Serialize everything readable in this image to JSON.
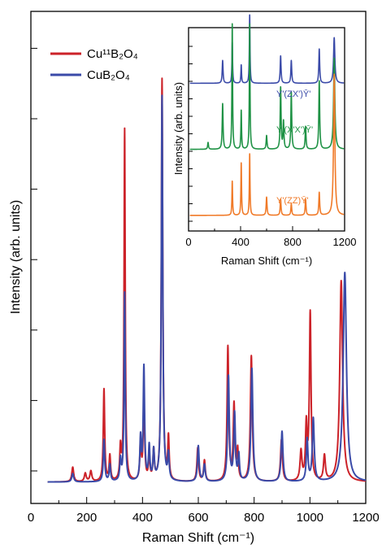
{
  "chart_data": [
    {
      "type": "line",
      "xlabel": "Raman Shift (cm⁻¹)",
      "ylabel": "Intensity (arb. units)",
      "xlim": [
        0,
        1200
      ],
      "xticks": [
        "0",
        "200",
        "400",
        "600",
        "800",
        "1000",
        "1200"
      ],
      "legend_position": "top-left",
      "baseline": 0.02,
      "series": [
        {
          "name": "Cu¹¹B₂O₄",
          "color": "#cc2229",
          "peaks": [
            [
              150,
              0.035,
              4
            ],
            [
              195,
              0.02,
              4
            ],
            [
              215,
              0.025,
              4
            ],
            [
              262,
              0.22,
              3
            ],
            [
              283,
              0.06,
              3
            ],
            [
              321,
              0.075,
              3
            ],
            [
              336,
              0.84,
              2.5
            ],
            [
              393,
              0.09,
              3
            ],
            [
              405,
              0.2,
              3
            ],
            [
              424,
              0.06,
              3
            ],
            [
              440,
              0.07,
              3
            ],
            [
              470,
              0.96,
              3
            ],
            [
              493,
              0.1,
              3
            ],
            [
              598,
              0.08,
              3.5
            ],
            [
              622,
              0.05,
              3.5
            ],
            [
              706,
              0.32,
              3.5
            ],
            [
              728,
              0.18,
              3.5
            ],
            [
              741,
              0.07,
              3
            ],
            [
              790,
              0.3,
              4
            ],
            [
              898,
              0.1,
              4
            ],
            [
              968,
              0.07,
              4
            ],
            [
              987,
              0.13,
              3.5
            ],
            [
              1001,
              0.4,
              3.5
            ],
            [
              1052,
              0.06,
              4
            ],
            [
              1112,
              0.48,
              6
            ]
          ]
        },
        {
          "name": "CuB₂O₄",
          "color": "#3a4aa8",
          "peaks": [
            [
              150,
              0.02,
              4
            ],
            [
              262,
              0.1,
              3
            ],
            [
              283,
              0.04,
              3
            ],
            [
              321,
              0.05,
              3
            ],
            [
              336,
              0.45,
              2.5
            ],
            [
              393,
              0.1,
              3
            ],
            [
              405,
              0.27,
              3
            ],
            [
              424,
              0.08,
              3
            ],
            [
              440,
              0.07,
              3
            ],
            [
              470,
              0.92,
              3
            ],
            [
              493,
              0.06,
              3
            ],
            [
              600,
              0.085,
              3.5
            ],
            [
              622,
              0.04,
              3.5
            ],
            [
              708,
              0.25,
              3.5
            ],
            [
              730,
              0.16,
              3.5
            ],
            [
              745,
              0.06,
              3
            ],
            [
              792,
              0.27,
              4
            ],
            [
              900,
              0.12,
              4
            ],
            [
              990,
              0.1,
              3.5
            ],
            [
              1012,
              0.15,
              4
            ],
            [
              1125,
              0.5,
              7
            ]
          ]
        }
      ]
    },
    {
      "type": "line",
      "xlabel": "Raman Shift (cm⁻¹)",
      "ylabel": "Intensity (arb. units)",
      "xlim": [
        0,
        1200
      ],
      "xticks": [
        "0",
        "400",
        "800",
        "1200"
      ],
      "series": [
        {
          "name": "Y'(ZX')Ȳ'",
          "color": "#3a4aa8",
          "offset": 0.62,
          "peaks": [
            [
              262,
              0.1,
              4
            ],
            [
              336,
              0.18,
              3
            ],
            [
              405,
              0.08,
              3
            ],
            [
              470,
              0.3,
              3
            ],
            [
              708,
              0.12,
              4
            ],
            [
              790,
              0.1,
              4
            ],
            [
              1005,
              0.15,
              4
            ],
            [
              1120,
              0.2,
              6
            ]
          ]
        },
        {
          "name": "Y'(X'X')Ȳ'",
          "color": "#1f9245",
          "offset": 0.33,
          "peaks": [
            [
              150,
              0.03,
              4
            ],
            [
              262,
              0.2,
              4
            ],
            [
              336,
              0.55,
              3
            ],
            [
              405,
              0.17,
              3
            ],
            [
              470,
              0.55,
              3
            ],
            [
              600,
              0.06,
              4
            ],
            [
              708,
              0.27,
              4
            ],
            [
              730,
              0.12,
              4
            ],
            [
              790,
              0.25,
              4
            ],
            [
              900,
              0.1,
              4
            ],
            [
              1005,
              0.3,
              4
            ],
            [
              1120,
              0.4,
              6
            ]
          ]
        },
        {
          "name": "Y'(ZZ)Ȳ'",
          "color": "#f07a28",
          "offset": 0.04,
          "peaks": [
            [
              336,
              0.15,
              3
            ],
            [
              405,
              0.23,
              3
            ],
            [
              470,
              0.27,
              3
            ],
            [
              600,
              0.08,
              4
            ],
            [
              708,
              0.07,
              4
            ],
            [
              790,
              0.05,
              4
            ],
            [
              900,
              0.07,
              4
            ],
            [
              1005,
              0.1,
              4
            ],
            [
              1120,
              0.62,
              6
            ]
          ]
        }
      ]
    }
  ]
}
